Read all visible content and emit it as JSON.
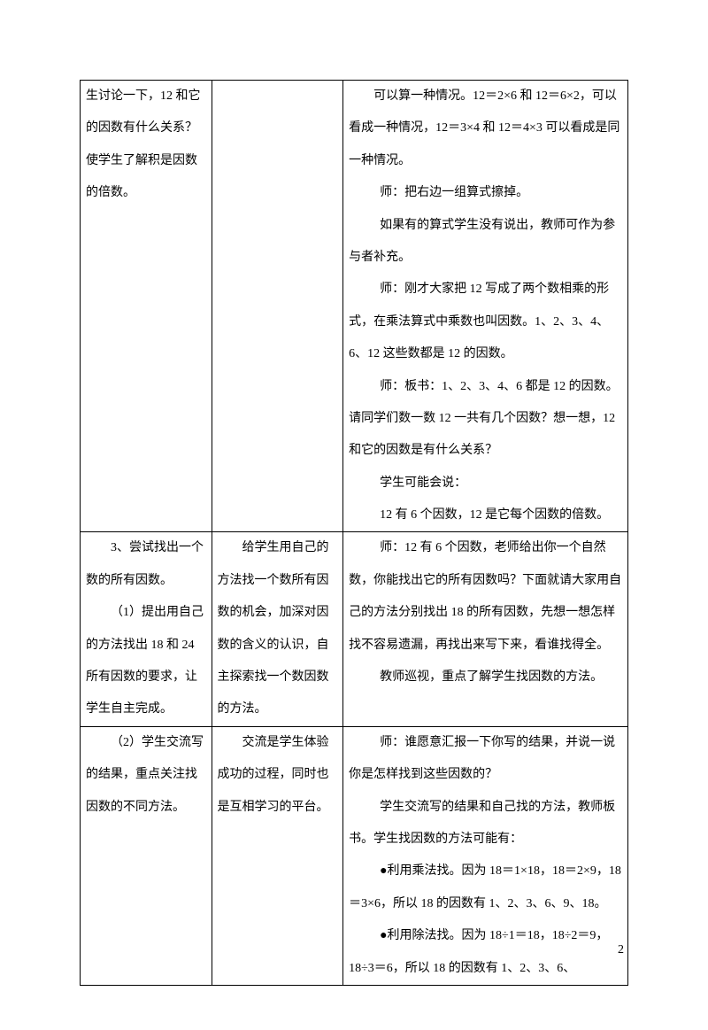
{
  "row1": {
    "col1": {
      "p1": "生讨论一下，12 和它的因数有什么关系？使学生了解积是因数的倍数。"
    },
    "col2": {},
    "col3": {
      "p1": "可以算一种情况。12＝2×6 和 12＝6×2，可以看成一种情况，12＝3×4 和 12＝4×3 可以看成是同一种情况。",
      "p2": "师：把右边一组算式擦掉。",
      "p3": "如果有的算式学生没有说出，教师可作为参与者补充。",
      "p4": "师：刚才大家把 12 写成了两个数相乘的形式，在乘法算式中乘数也叫因数。1、2、3、4、6、12 这些数都是 12 的因数。",
      "p5": "师：板书：1、2、3、4、6 都是 12 的因数。请同学们数一数 12 一共有几个因数？想一想，12 和它的因数是有什么关系？",
      "p6": "学生可能会说：",
      "p7": "12 有 6 个因数，12 是它每个因数的倍数。"
    }
  },
  "row2": {
    "col1": {
      "p1": "3、尝试找出一个数的所有因数。",
      "p2": "（1）提出用自己的方法找出 18 和 24 所有因数的要求，让学生自主完成。"
    },
    "col2": {
      "p1": "给学生用自己的方法找一个数所有因数的机会，加深对因数的含义的认识，自主探索找一个数因数的方法。"
    },
    "col3": {
      "p1": "师：12 有 6 个因数，老师给出你一个自然数，你能找出它的所有因数吗？下面就请大家用自己的方法分别找出 18 的所有因数，先想一想怎样找不容易遗漏，再找出来写下来，看谁找得全。",
      "p2": "教师巡视，重点了解学生找因数的方法。"
    }
  },
  "row3": {
    "col1": {
      "p1": "（2）学生交流写的结果，重点关注找因数的不同方法。"
    },
    "col2": {
      "p1": "交流是学生体验成功的过程，同时也是互相学习的平台。"
    },
    "col3": {
      "p1": "师：谁愿意汇报一下你写的结果，并说一说你是怎样找到这些因数的？",
      "p2": "学生交流写的结果和自己找的方法，教师板书。学生找因数的方法可能有：",
      "p3": "●利用乘法找。因为 18＝1×18，18＝2×9，18＝3×6，所以 18 的因数有 1、2、3、6、9、18。",
      "p4": "●利用除法找。因为 18÷1＝18，18÷2＝9，18÷3＝6，所以 18 的因数有 1、2、3、6、"
    }
  },
  "pageNumber": "2"
}
